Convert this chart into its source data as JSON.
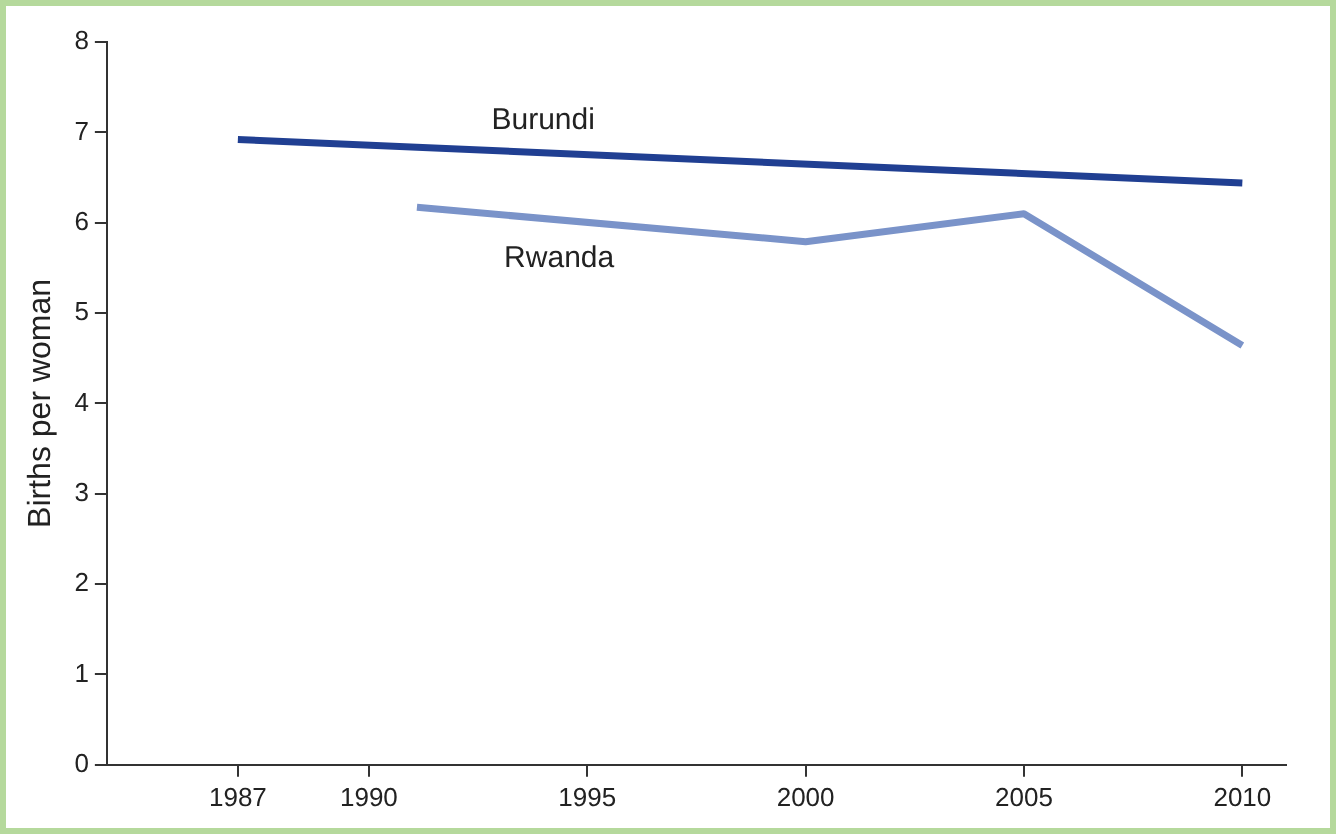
{
  "chart_data": {
    "type": "line",
    "ylabel": "Births per woman",
    "series": [
      {
        "name": "Burundi",
        "color": "#203f92",
        "x": [
          1987,
          2010
        ],
        "values": [
          6.92,
          6.44
        ]
      },
      {
        "name": "Rwanda",
        "color": "#7a93c9",
        "x": [
          1991.1,
          2000,
          2005,
          2010
        ],
        "values": [
          6.17,
          5.79,
          6.1,
          4.64
        ]
      }
    ],
    "xlim": [
      1984,
      2011
    ],
    "xticks": [
      1987,
      1990,
      1995,
      2000,
      2005,
      2010
    ],
    "ylim": [
      0,
      8
    ],
    "yticks": [
      0,
      1,
      2,
      3,
      4,
      5,
      6,
      7,
      8
    ],
    "grid": false,
    "legend": false,
    "marker": "none",
    "line_style": "solid"
  }
}
